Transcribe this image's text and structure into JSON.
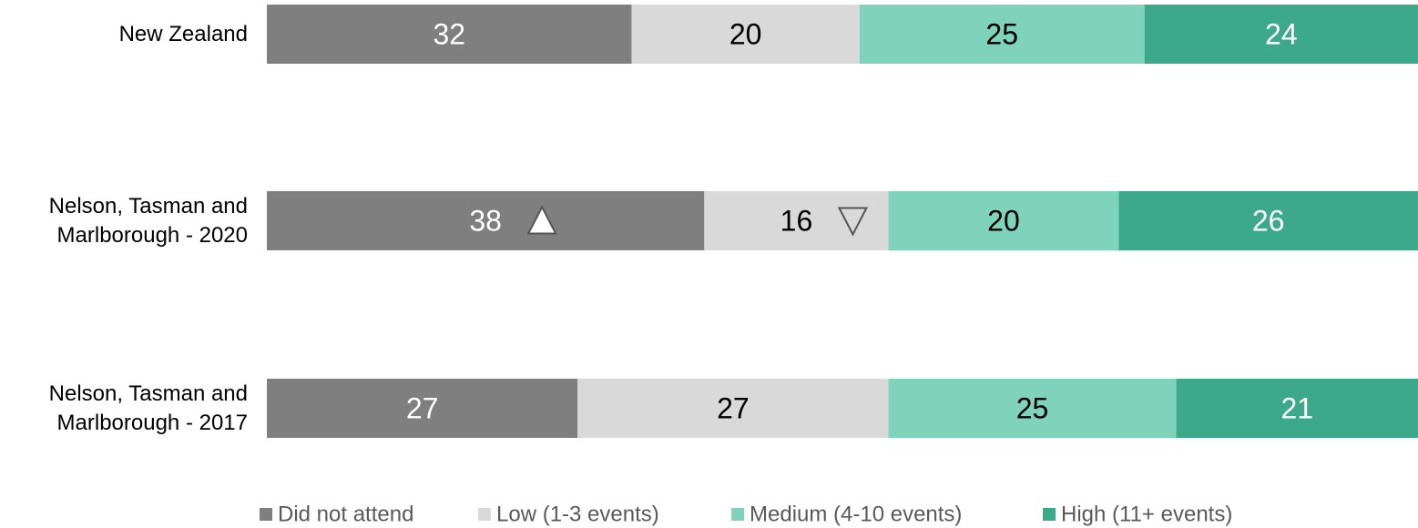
{
  "chart_data": {
    "type": "bar",
    "stacking": "percent",
    "categories": [
      "New Zealand",
      "Nelson, Tasman and Marlborough - 2020",
      "Nelson, Tasman and Marlborough - 2017"
    ],
    "series": [
      {
        "name": "Did not attend",
        "color": "#7f7f7f",
        "label_color": "#ffffff",
        "values": [
          32,
          38,
          27
        ]
      },
      {
        "name": "Low (1-3 events)",
        "color": "#d9d9d9",
        "label_color": "#000000",
        "values": [
          20,
          16,
          27
        ]
      },
      {
        "name": "Medium (4-10 events)",
        "color": "#7fd3bb",
        "label_color": "#000000",
        "values": [
          25,
          20,
          25
        ]
      },
      {
        "name": "High (11+ events)",
        "color": "#3caa8a",
        "label_color": "#ffffff",
        "values": [
          24,
          26,
          21
        ]
      }
    ],
    "significance": [
      {
        "series": 0,
        "index": 1,
        "direction": "up"
      },
      {
        "series": 1,
        "index": 1,
        "direction": "down"
      }
    ],
    "legend": "bottom"
  }
}
